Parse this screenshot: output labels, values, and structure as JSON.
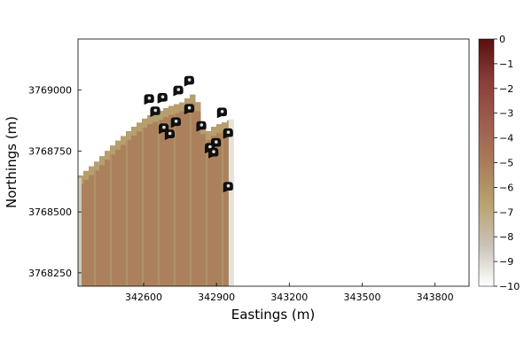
{
  "chart_data": {
    "type": "heatmap",
    "xlabel": "Eastings (m)",
    "ylabel": "Northings (m)",
    "xlim": [
      342330,
      343940
    ],
    "ylim": [
      3768195,
      3769210
    ],
    "xticks": [
      342600,
      342900,
      343200,
      343500,
      343800
    ],
    "yticks": [
      3768250,
      3768500,
      3768750,
      3769000
    ],
    "colorbar": {
      "min": -10,
      "max": 0,
      "ticks": [
        0,
        -1,
        -2,
        -3,
        -4,
        -5,
        -6,
        -7,
        -8,
        -9,
        -10
      ],
      "colors": [
        "#ffffff",
        "#c9c3b6",
        "#b8a270",
        "#a97c5a",
        "#9e5c4e",
        "#8a3c38",
        "#5a1010"
      ]
    },
    "field": {
      "left_edge": 342330,
      "right_edge": 342965,
      "bottom_edge": 3768195,
      "top_edge_profile": [
        [
          342330,
          3768640
        ],
        [
          342400,
          3768700
        ],
        [
          342480,
          3768780
        ],
        [
          342560,
          3768850
        ],
        [
          342620,
          3768895
        ],
        [
          342660,
          3768910
        ],
        [
          342700,
          3768930
        ],
        [
          342760,
          3768950
        ],
        [
          342790,
          3768975
        ],
        [
          342815,
          3768990
        ],
        [
          342835,
          3768890
        ],
        [
          342855,
          3768820
        ],
        [
          342880,
          3768845
        ],
        [
          342910,
          3768860
        ],
        [
          342940,
          3768870
        ],
        [
          342965,
          3768880
        ]
      ],
      "value_low": -5.2,
      "value_edge": -6.5
    },
    "markers": [
      {
        "x": 342620,
        "y": 3768960
      },
      {
        "x": 342675,
        "y": 3768965
      },
      {
        "x": 342740,
        "y": 3768995
      },
      {
        "x": 342785,
        "y": 3769035
      },
      {
        "x": 342645,
        "y": 3768910
      },
      {
        "x": 342785,
        "y": 3768920
      },
      {
        "x": 342920,
        "y": 3768905
      },
      {
        "x": 342730,
        "y": 3768865
      },
      {
        "x": 342680,
        "y": 3768840
      },
      {
        "x": 342705,
        "y": 3768815
      },
      {
        "x": 342835,
        "y": 3768850
      },
      {
        "x": 342945,
        "y": 3768820
      },
      {
        "x": 342895,
        "y": 3768780
      },
      {
        "x": 342870,
        "y": 3768760
      },
      {
        "x": 342885,
        "y": 3768740
      },
      {
        "x": 342945,
        "y": 3768600
      }
    ]
  }
}
